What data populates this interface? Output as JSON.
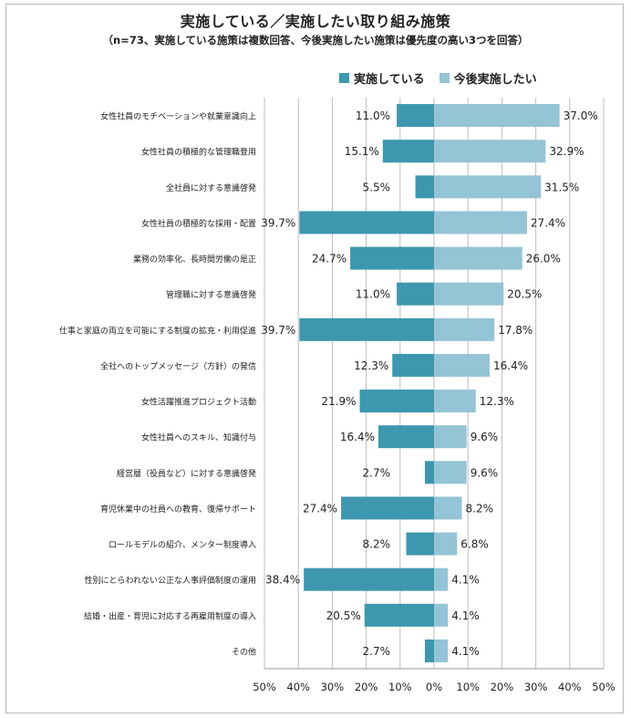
{
  "chart_data": {
    "type": "bar",
    "title": "実施している／実施したい取り組み施策",
    "subtitle": "（n=73、実施している施策は複数回答、今後実施したい施策は優先度の高い3つを回答）",
    "categories": [
      "女性社員のモチベーションや就業意識向上",
      "女性社員の積極的な管理職登用",
      "全社員に対する意識啓発",
      "女性社員の積極的な採用・配置",
      "業務の効率化、長時間労働の是正",
      "管理職に対する意識啓発",
      "仕事と家庭の両立を可能にする制度の拡充・利用促進",
      "全社へのトップメッセージ（方針）の発信",
      "女性活躍推進プロジェクト活動",
      "女性社員へのスキル、知識付与",
      "経営層（役員など）に対する意識啓発",
      "育児休業中の社員への教育、復帰サポート",
      "ロールモデルの紹介、メンター制度導入",
      "性別にとらわれない公正な人事評価制度の運用",
      "結婚・出産・育児に対応する再雇用制度の導入",
      "その他"
    ],
    "series": [
      {
        "name": "実施している",
        "color": "#3d97ae",
        "direction": "left",
        "values": [
          11.0,
          15.1,
          5.5,
          39.7,
          24.7,
          11.0,
          39.7,
          12.3,
          21.9,
          16.4,
          2.7,
          27.4,
          8.2,
          38.4,
          20.5,
          2.7
        ],
        "labels": [
          "11.0%",
          "15.1%",
          "5.5%",
          "39.7%",
          "24.7%",
          "11.0%",
          "39.7%",
          "12.3%",
          "21.9%",
          "16.4%",
          "2.7%",
          "27.4%",
          "8.2%",
          "38.4%",
          "20.5%",
          "2.7%"
        ]
      },
      {
        "name": "今後実施したい",
        "color": "#94c4d5",
        "direction": "right",
        "values": [
          37.0,
          32.9,
          31.5,
          27.4,
          26.0,
          20.5,
          17.8,
          16.4,
          12.3,
          9.6,
          9.6,
          8.2,
          6.8,
          4.1,
          4.1,
          4.1
        ],
        "labels": [
          "37.0%",
          "32.9%",
          "31.5%",
          "27.4%",
          "26.0%",
          "20.5%",
          "17.8%",
          "16.4%",
          "12.3%",
          "9.6%",
          "9.6%",
          "8.2%",
          "6.8%",
          "4.1%",
          "4.1%",
          "4.1%"
        ]
      }
    ],
    "xlim": [
      -50,
      50
    ],
    "xticks": [
      -50,
      -40,
      -30,
      -20,
      -10,
      0,
      10,
      20,
      30,
      40,
      50
    ],
    "xtick_labels": [
      "50%",
      "40%",
      "30%",
      "20%",
      "10%",
      "0%",
      "10%",
      "20%",
      "30%",
      "40%",
      "50%"
    ],
    "grid": true,
    "legend_position": "top-center"
  }
}
